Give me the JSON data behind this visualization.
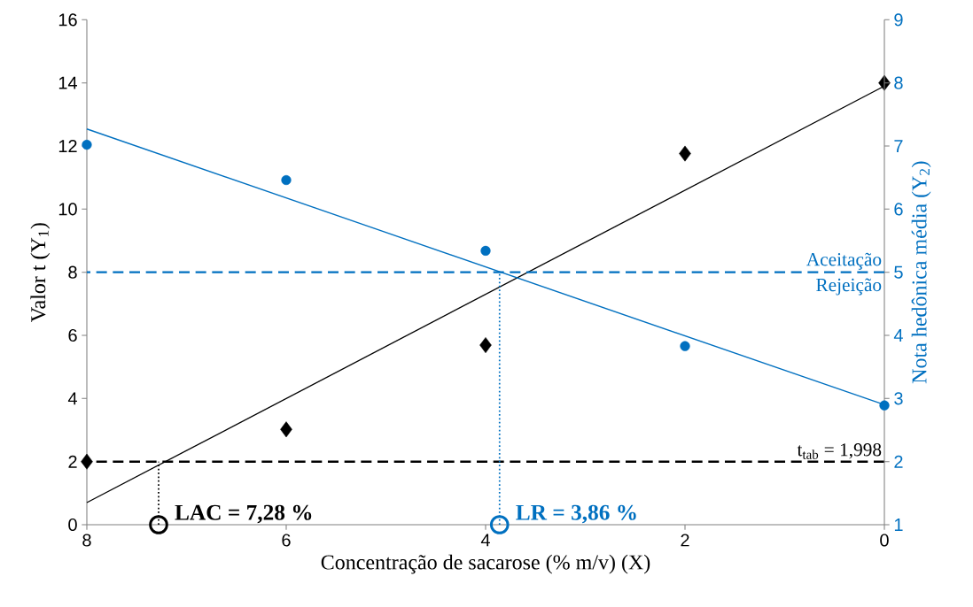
{
  "chart_data": {
    "type": "scatter",
    "xlabel": "Concentração de sacarose (% m/v) (X)",
    "ylabel": "Valor t (Y$_{1}$)",
    "y2label": "Nota hedônica média (Y$_{2}$)",
    "xlim": [
      8,
      0
    ],
    "xticks": [
      8,
      6,
      4,
      2,
      0
    ],
    "ylim": [
      0,
      16
    ],
    "yticks": [
      0,
      2,
      4,
      6,
      8,
      10,
      12,
      14,
      16
    ],
    "y2lim": [
      1,
      9
    ],
    "y2ticks": [
      1,
      2,
      3,
      4,
      5,
      6,
      7,
      8,
      9
    ],
    "series": [
      {
        "color": "#000000",
        "marker": "diamond",
        "x": [
          8,
          6,
          4,
          2,
          0
        ],
        "values": [
          2.0,
          3.02,
          5.69,
          11.76,
          14.0
        ]
      },
      {
        "color": "#0070c0",
        "marker": "circle",
        "axis": "y2",
        "x": [
          8,
          6,
          4,
          2,
          0
        ],
        "values": [
          7.02,
          6.46,
          5.34,
          3.83,
          2.89
        ]
      },
      {
        "type": "line",
        "color": "#000000",
        "marker": "none",
        "line_style": "solid",
        "x": [
          8,
          0
        ],
        "values": [
          0.7,
          13.9
        ]
      },
      {
        "type": "line",
        "color": "#0070c0",
        "marker": "none",
        "line_style": "solid",
        "axis": "y2",
        "x": [
          8,
          0
        ],
        "values": [
          7.27,
          2.9
        ]
      },
      {
        "type": "line",
        "color": "#000000",
        "marker": "circle",
        "line_style": "dotted",
        "x": [
          7.28,
          7.28
        ],
        "values": [
          0,
          2
        ]
      },
      {
        "type": "line",
        "color": "#0070c0",
        "marker": "circle",
        "line_style": "dotted",
        "axis": "y2",
        "x": [
          3.86,
          3.86
        ],
        "values": [
          1,
          5
        ]
      }
    ],
    "ref_lines": [
      {
        "axis": "y",
        "value": 1.998,
        "label": "t$_{tab}$ = 1,998",
        "color": "#000000",
        "line_style": "dashed"
      },
      {
        "axis": "y2",
        "value": 5,
        "label": "Aceitação",
        "color": "#0070c0",
        "line_style": "dashed"
      }
    ],
    "annotations": [
      {
        "text": "LAC = 7,28 %",
        "x": 7.28,
        "y": 0
      },
      {
        "text": "LR = 3,86 %",
        "x": 3.86,
        "y": 0
      },
      "Rejeição"
    ]
  }
}
